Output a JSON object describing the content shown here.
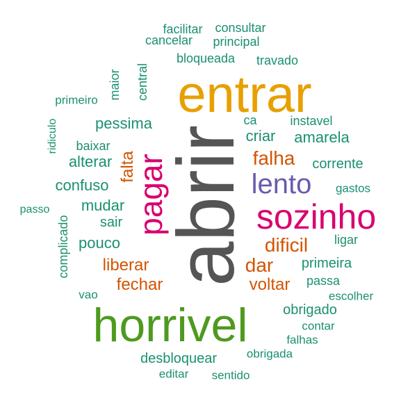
{
  "colors": {
    "gray": "#555555",
    "orange": "#E7A000",
    "green_big": "#4E9A1F",
    "magenta": "#D9006F",
    "purple": "#6A5AAE",
    "rust": "#D35400",
    "teal": "#1A9070"
  },
  "words": [
    {
      "text": "abrir",
      "color": "gray"
    },
    {
      "text": "entrar",
      "color": "orange"
    },
    {
      "text": "horrivel",
      "color": "green_big"
    },
    {
      "text": "sozinho",
      "color": "magenta"
    },
    {
      "text": "pagar",
      "color": "magenta"
    },
    {
      "text": "lento",
      "color": "purple"
    },
    {
      "text": "falha",
      "color": "rust"
    },
    {
      "text": "dificil",
      "color": "rust"
    },
    {
      "text": "dar",
      "color": "rust"
    },
    {
      "text": "voltar",
      "color": "rust"
    },
    {
      "text": "liberar",
      "color": "rust"
    },
    {
      "text": "fechar",
      "color": "rust"
    },
    {
      "text": "falta",
      "color": "rust"
    },
    {
      "text": "facilitar",
      "color": "teal"
    },
    {
      "text": "consultar",
      "color": "teal"
    },
    {
      "text": "cancelar",
      "color": "teal"
    },
    {
      "text": "principal",
      "color": "teal"
    },
    {
      "text": "bloqueada",
      "color": "teal"
    },
    {
      "text": "travado",
      "color": "teal"
    },
    {
      "text": "maior",
      "color": "teal"
    },
    {
      "text": "central",
      "color": "teal"
    },
    {
      "text": "primeiro",
      "color": "teal"
    },
    {
      "text": "ridiculo",
      "color": "teal"
    },
    {
      "text": "pessima",
      "color": "teal"
    },
    {
      "text": "ca",
      "color": "teal"
    },
    {
      "text": "instavel",
      "color": "teal"
    },
    {
      "text": "criar",
      "color": "teal"
    },
    {
      "text": "amarela",
      "color": "teal"
    },
    {
      "text": "baixar",
      "color": "teal"
    },
    {
      "text": "alterar",
      "color": "teal"
    },
    {
      "text": "corrente",
      "color": "teal"
    },
    {
      "text": "confuso",
      "color": "teal"
    },
    {
      "text": "gastos",
      "color": "teal"
    },
    {
      "text": "passo",
      "color": "teal"
    },
    {
      "text": "mudar",
      "color": "teal"
    },
    {
      "text": "complicado",
      "color": "teal"
    },
    {
      "text": "sair",
      "color": "teal"
    },
    {
      "text": "ligar",
      "color": "teal"
    },
    {
      "text": "pouco",
      "color": "teal"
    },
    {
      "text": "primeira",
      "color": "teal"
    },
    {
      "text": "passa",
      "color": "teal"
    },
    {
      "text": "vao",
      "color": "teal"
    },
    {
      "text": "escolher",
      "color": "teal"
    },
    {
      "text": "obrigado",
      "color": "teal"
    },
    {
      "text": "contar",
      "color": "teal"
    },
    {
      "text": "falhas",
      "color": "teal"
    },
    {
      "text": "desbloquear",
      "color": "teal"
    },
    {
      "text": "obrigada",
      "color": "teal"
    },
    {
      "text": "editar",
      "color": "teal"
    },
    {
      "text": "sentido",
      "color": "teal"
    }
  ]
}
